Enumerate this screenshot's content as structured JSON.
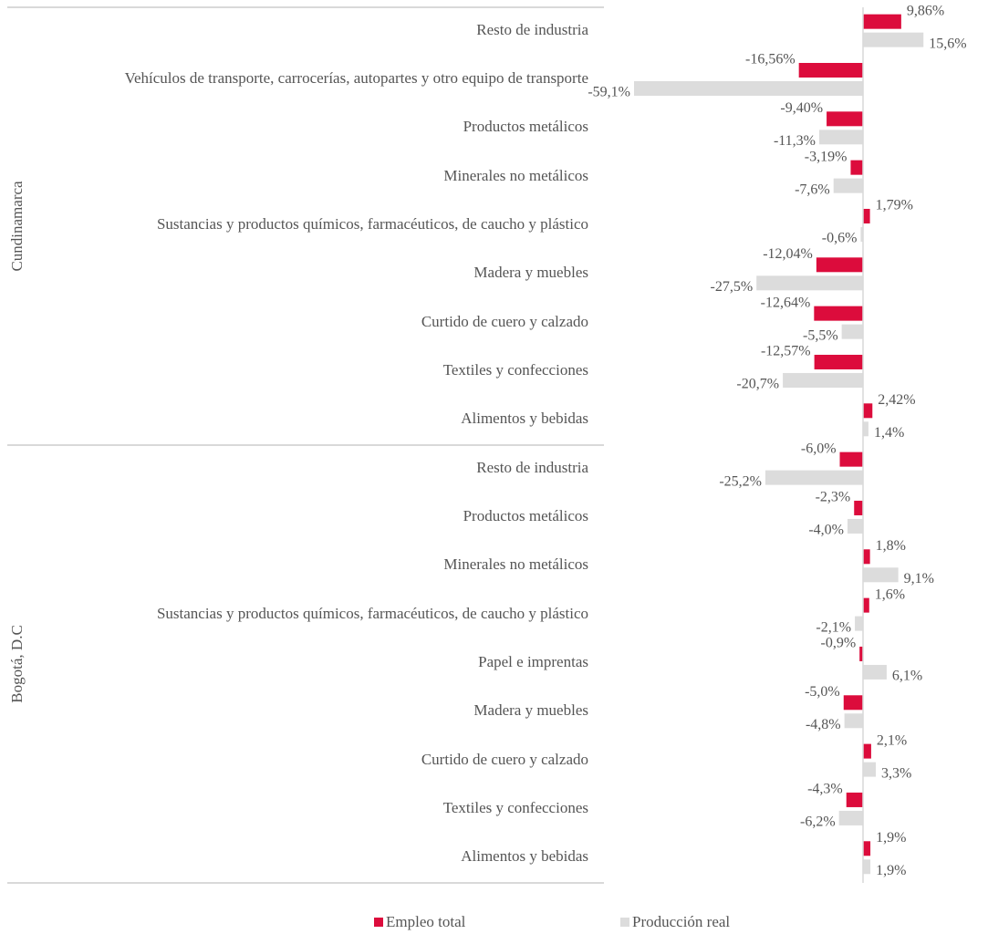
{
  "chart_data": {
    "type": "bar",
    "orientation": "horizontal",
    "legend": [
      {
        "name": "Empleo total",
        "color": "#dc0c3c"
      },
      {
        "name": "Producción real",
        "color": "#dcdcdc"
      }
    ],
    "groups": [
      {
        "name": "Cundinamarca",
        "categories": [
          "Resto de industria",
          "Vehículos de transporte, carrocerías, autopartes y otro equipo de transporte",
          "Productos metálicos",
          "Minerales no metálicos",
          "Sustancias y productos químicos, farmacéuticos, de caucho y plástico",
          "Madera y muebles",
          "Curtido de cuero y calzado",
          "Textiles y confecciones",
          "Alimentos y bebidas"
        ],
        "series": [
          {
            "values": [
              9.86,
              -16.56,
              -9.4,
              -3.19,
              1.79,
              -12.04,
              -12.64,
              -12.57,
              2.42
            ],
            "value_labels": [
              "9,86%",
              "-16,56%",
              "-9,40%",
              "-3,19%",
              "1,79%",
              "-12,04%",
              "-12,64%",
              "-12,57%",
              "2,42%"
            ]
          },
          {
            "values": [
              15.6,
              -59.1,
              -11.3,
              -7.6,
              -0.6,
              -27.5,
              -5.5,
              -20.7,
              1.4
            ],
            "value_labels": [
              "15,6%",
              "-59,1%",
              "-11,3%",
              "-7,6%",
              "-0,6%",
              "-27,5%",
              "-5,5%",
              "-20,7%",
              "1,4%"
            ]
          }
        ]
      },
      {
        "name": "Bogotá, D.C",
        "categories": [
          "Resto de industria",
          "Productos metálicos",
          "Minerales no metálicos",
          "Sustancias y productos químicos, farmacéuticos, de caucho y plástico",
          "Papel e imprentas",
          "Madera y muebles",
          "Curtido de cuero y calzado",
          "Textiles y confecciones",
          "Alimentos y bebidas"
        ],
        "series": [
          {
            "values": [
              -6.0,
              -2.3,
              1.8,
              1.6,
              -0.9,
              -5.0,
              2.1,
              -4.3,
              1.9
            ],
            "value_labels": [
              "-6,0%",
              "-2,3%",
              "1,8%",
              "1,6%",
              "-0,9%",
              "-5,0%",
              "2,1%",
              "-4,3%",
              "1,9%"
            ]
          },
          {
            "values": [
              -25.2,
              -4.0,
              9.1,
              -2.1,
              6.1,
              -4.8,
              3.3,
              -6.2,
              1.9
            ],
            "value_labels": [
              "-25,2%",
              "-4,0%",
              "9,1%",
              "-2,1%",
              "6,1%",
              "-4,8%",
              "3,3%",
              "-6,2%",
              "1,9%"
            ]
          }
        ]
      }
    ]
  }
}
